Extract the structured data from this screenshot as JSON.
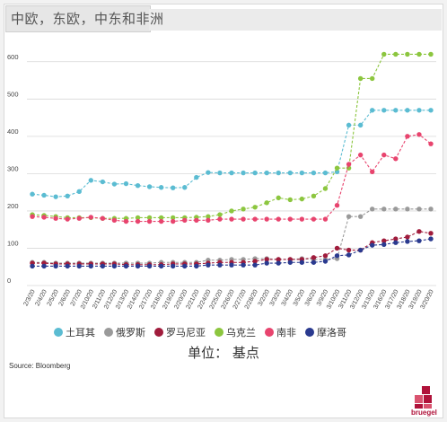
{
  "title": "中欧，东欧，中东和非洲",
  "unit_label": "单位： 基点",
  "source": "Source: Bloomberg",
  "logo_text": "bruegel",
  "chart_data": {
    "type": "line",
    "title": "中欧，东欧，中东和非洲",
    "xlabel": "",
    "ylabel": "单位： 基点",
    "ylim": [
      0,
      650
    ],
    "yticks": [
      0,
      100,
      200,
      300,
      400,
      500,
      600
    ],
    "grid": true,
    "legend_position": "bottom",
    "categories": [
      "2/3/20",
      "2/4/20",
      "2/5/20",
      "2/6/20",
      "2/7/20",
      "2/10/20",
      "2/11/20",
      "2/12/20",
      "2/13/20",
      "2/14/20",
      "2/17/20",
      "2/18/20",
      "2/19/20",
      "2/20/20",
      "2/21/20",
      "2/24/20",
      "2/25/20",
      "2/26/20",
      "2/27/20",
      "2/28/20",
      "3/2/20",
      "3/3/20",
      "3/4/20",
      "3/5/20",
      "3/6/20",
      "3/9/20",
      "3/10/20",
      "3/11/20",
      "3/12/20",
      "3/13/20",
      "3/16/20",
      "3/17/20",
      "3/18/20",
      "3/19/20",
      "3/20/20"
    ],
    "series": [
      {
        "name": "土耳其",
        "color": "#5bbcd2",
        "marker": "circle",
        "values": [
          245,
          242,
          238,
          240,
          252,
          282,
          278,
          272,
          273,
          268,
          265,
          263,
          262,
          263,
          290,
          303,
          302,
          302,
          302,
          302,
          302,
          302,
          302,
          302,
          302,
          302,
          305,
          430,
          430,
          470,
          470,
          470,
          470,
          470,
          470
        ]
      },
      {
        "name": "俄罗斯",
        "color": "#9a9a9a",
        "marker": "circle",
        "values": [
          62,
          62,
          60,
          60,
          60,
          60,
          60,
          60,
          60,
          60,
          60,
          62,
          62,
          62,
          62,
          68,
          68,
          70,
          70,
          72,
          72,
          70,
          70,
          72,
          70,
          70,
          72,
          185,
          185,
          205,
          205,
          205,
          205,
          205,
          205
        ]
      },
      {
        "name": "罗马尼亚",
        "color": "#a01c3c",
        "marker": "circle",
        "values": [
          60,
          60,
          58,
          58,
          58,
          58,
          58,
          58,
          56,
          56,
          56,
          56,
          58,
          58,
          58,
          60,
          62,
          62,
          62,
          65,
          70,
          70,
          70,
          70,
          75,
          80,
          100,
          95,
          95,
          115,
          120,
          125,
          130,
          145,
          140
        ]
      },
      {
        "name": "乌克兰",
        "color": "#8cc63f",
        "marker": "circle",
        "values": [
          190,
          188,
          185,
          182,
          182,
          182,
          180,
          180,
          180,
          182,
          182,
          182,
          182,
          182,
          183,
          185,
          190,
          200,
          205,
          210,
          222,
          235,
          230,
          232,
          240,
          260,
          315,
          315,
          555,
          555,
          620,
          620,
          620,
          620,
          620
        ]
      },
      {
        "name": "南非",
        "color": "#e8446e",
        "marker": "circle",
        "values": [
          185,
          183,
          180,
          178,
          180,
          183,
          180,
          175,
          172,
          172,
          172,
          172,
          172,
          175,
          175,
          175,
          178,
          178,
          178,
          178,
          178,
          178,
          178,
          178,
          178,
          178,
          215,
          325,
          350,
          305,
          350,
          340,
          400,
          405,
          380
        ]
      },
      {
        "name": "摩洛哥",
        "color": "#2a3a8f",
        "marker": "circle",
        "values": [
          52,
          52,
          52,
          52,
          52,
          52,
          52,
          52,
          52,
          52,
          52,
          52,
          52,
          52,
          52,
          55,
          55,
          55,
          55,
          55,
          60,
          60,
          62,
          62,
          62,
          65,
          80,
          82,
          95,
          108,
          110,
          115,
          118,
          120,
          125
        ]
      }
    ]
  }
}
